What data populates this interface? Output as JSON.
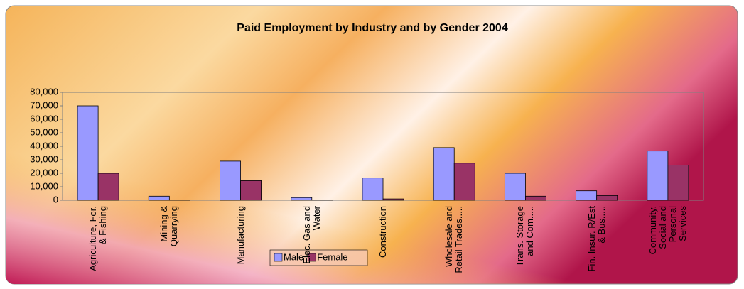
{
  "chart_data": {
    "type": "bar",
    "title": "Paid Employment by Industry and by Gender 2004",
    "categories": [
      "Agriculture, For. & Fishing",
      "Mining & Quarrying",
      "Manufacturing",
      "Elec. Gas and Water",
      "Construction",
      "Wholesale and Retail Trades.....",
      "Trans. Storage and Com.....",
      "Fin. Insur. R/Est & Bus.....",
      "Community, Social and Personal Services"
    ],
    "series": [
      {
        "name": "Male",
        "color": "#9999ff",
        "values": [
          70000,
          3000,
          29000,
          2000,
          16500,
          39000,
          20000,
          7000,
          36500
        ]
      },
      {
        "name": "Female",
        "color": "#993366",
        "values": [
          20000,
          300,
          14500,
          300,
          1000,
          27500,
          3000,
          3500,
          26000
        ]
      }
    ],
    "ylim": [
      0,
      80000
    ],
    "yticks": [
      0,
      {
        "value": 10000,
        "label": "10,000"
      },
      {
        "value": 20000,
        "label": "20,000"
      },
      {
        "value": 30000,
        "label": "30,000"
      },
      {
        "value": 40000,
        "label": "40,000"
      },
      {
        "value": 50000,
        "label": "50,000"
      },
      {
        "value": 60000,
        "label": "60,000"
      },
      {
        "value": 70000,
        "label": "70,000"
      },
      {
        "value": 80000,
        "label": "80,000"
      }
    ],
    "legend": "bottom"
  }
}
